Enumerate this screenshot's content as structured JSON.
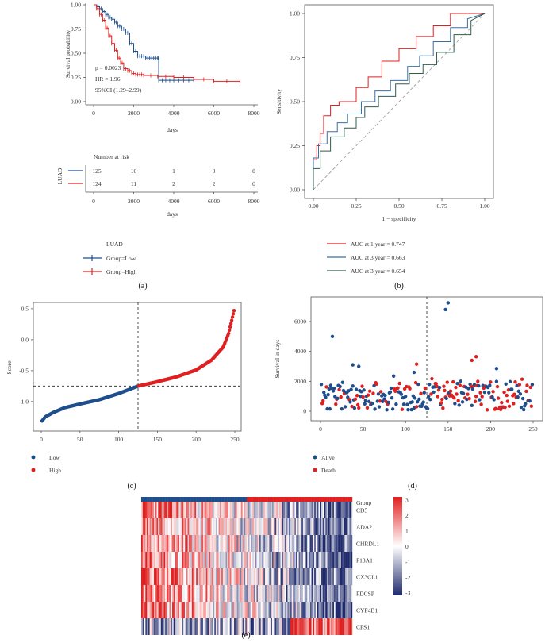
{
  "panels": {
    "a": "(a)",
    "b": "(b)",
    "c": "(c)",
    "d": "(d)",
    "e": "(e)"
  },
  "chart_data": [
    {
      "id": "a-km",
      "type": "line",
      "ylabel": "Survival probability",
      "xlabel": "days",
      "xlim": [
        0,
        8000
      ],
      "ylim": [
        0,
        1
      ],
      "xticks": [
        0,
        2000,
        4000,
        6000,
        8000
      ],
      "yticks": [
        "0.00",
        "0.25",
        "0.50",
        "0.75",
        "1.00"
      ],
      "annotations": [
        "p = 0.0023",
        "HR = 1.96",
        "95%CI (1.29–2.99)"
      ],
      "colors": {
        "Low": "#1f4e8c",
        "High": "#e02020"
      },
      "series": [
        {
          "name": "Group=Low",
          "x": [
            0,
            150,
            300,
            450,
            600,
            750,
            900,
            1050,
            1200,
            1400,
            1600,
            1800,
            2000,
            2200,
            2400,
            2600,
            2800,
            3000,
            3200,
            3250,
            3600,
            4000,
            4500,
            5000
          ],
          "y": [
            1,
            0.98,
            0.96,
            0.93,
            0.9,
            0.87,
            0.85,
            0.82,
            0.78,
            0.75,
            0.71,
            0.6,
            0.52,
            0.47,
            0.47,
            0.45,
            0.45,
            0.45,
            0.45,
            0.22,
            0.22,
            0.22,
            0.22,
            0.22
          ]
        },
        {
          "name": "Group=High",
          "x": [
            0,
            150,
            300,
            450,
            600,
            750,
            900,
            1050,
            1200,
            1350,
            1500,
            1700,
            1900,
            2100,
            2300,
            2500,
            3200,
            4000,
            5000,
            6000,
            7300
          ],
          "y": [
            1,
            0.96,
            0.9,
            0.84,
            0.76,
            0.68,
            0.6,
            0.53,
            0.45,
            0.4,
            0.34,
            0.32,
            0.29,
            0.28,
            0.28,
            0.27,
            0.26,
            0.25,
            0.23,
            0.21,
            0.21
          ]
        }
      ]
    },
    {
      "id": "a-risk",
      "type": "table",
      "title": "Number at risk",
      "group_label": "LUAD",
      "xlabel": "days",
      "xticks": [
        0,
        2000,
        4000,
        6000,
        8000
      ],
      "rows": [
        {
          "name": "Low",
          "color": "#1f4e8c",
          "values": [
            "125",
            "10",
            "1",
            "0",
            "0"
          ]
        },
        {
          "name": "High",
          "color": "#e02020",
          "values": [
            "124",
            "11",
            "2",
            "2",
            "0"
          ]
        }
      ],
      "legend_title": "LUAD",
      "legend": [
        "Group=Low",
        "Group=High"
      ]
    },
    {
      "id": "b-roc",
      "type": "line",
      "xlabel": "1 − specificity",
      "ylabel": "Sensitivity",
      "xlim": [
        0,
        1
      ],
      "ylim": [
        0,
        1
      ],
      "xticks": [
        "0.00",
        "0.25",
        "0.50",
        "0.75",
        "1.00"
      ],
      "yticks": [
        "0.00",
        "0.25",
        "0.50",
        "0.75",
        "1.00"
      ],
      "series": [
        {
          "name": "AUC at 1 year = 0.747",
          "color": "#e02020",
          "x": [
            0,
            0,
            0.02,
            0.02,
            0.04,
            0.04,
            0.06,
            0.06,
            0.1,
            0.1,
            0.15,
            0.15,
            0.25,
            0.25,
            0.32,
            0.32,
            0.4,
            0.4,
            0.5,
            0.5,
            0.6,
            0.6,
            0.7,
            0.7,
            0.8,
            0.8,
            0.9,
            1
          ],
          "y": [
            0,
            0.17,
            0.17,
            0.25,
            0.25,
            0.32,
            0.32,
            0.42,
            0.42,
            0.48,
            0.48,
            0.5,
            0.5,
            0.58,
            0.58,
            0.64,
            0.64,
            0.73,
            0.73,
            0.8,
            0.8,
            0.87,
            0.87,
            0.93,
            0.93,
            1,
            1,
            1
          ]
        },
        {
          "name": "AUC at 3 year = 0.663",
          "color": "#3a6ea5",
          "x": [
            0,
            0,
            0.03,
            0.03,
            0.08,
            0.08,
            0.14,
            0.14,
            0.2,
            0.2,
            0.28,
            0.28,
            0.36,
            0.36,
            0.45,
            0.45,
            0.55,
            0.55,
            0.62,
            0.62,
            0.7,
            0.7,
            0.8,
            0.8,
            0.9,
            0.9,
            1
          ],
          "y": [
            0,
            0.18,
            0.18,
            0.26,
            0.26,
            0.33,
            0.33,
            0.38,
            0.38,
            0.43,
            0.43,
            0.5,
            0.5,
            0.56,
            0.56,
            0.62,
            0.62,
            0.7,
            0.7,
            0.76,
            0.76,
            0.84,
            0.84,
            0.92,
            0.92,
            0.97,
            1
          ]
        },
        {
          "name": "AUC at 3 year = 0.654",
          "color": "#2f5e4e",
          "x": [
            0,
            0,
            0.04,
            0.04,
            0.1,
            0.1,
            0.18,
            0.18,
            0.25,
            0.25,
            0.3,
            0.3,
            0.38,
            0.38,
            0.48,
            0.48,
            0.56,
            0.56,
            0.64,
            0.64,
            0.72,
            0.72,
            0.82,
            0.82,
            0.92,
            0.92,
            1
          ],
          "y": [
            0,
            0.12,
            0.12,
            0.22,
            0.22,
            0.3,
            0.3,
            0.35,
            0.35,
            0.41,
            0.41,
            0.47,
            0.47,
            0.53,
            0.53,
            0.6,
            0.6,
            0.66,
            0.66,
            0.71,
            0.71,
            0.78,
            0.78,
            0.88,
            0.88,
            0.96,
            1
          ]
        }
      ]
    },
    {
      "id": "c-score",
      "type": "scatter",
      "ylabel": "Score",
      "xlim": [
        0,
        255
      ],
      "ylim": [
        -1.4,
        0.55
      ],
      "xticks": [
        0,
        50,
        100,
        150,
        200,
        250
      ],
      "yticks": [
        "-1.0",
        "-0.5",
        "0.0",
        "0.5"
      ],
      "cutoff_x": 125,
      "cutoff_y": -0.75,
      "legend": [
        "Low",
        "High"
      ],
      "colors": {
        "Low": "#1f4e8c",
        "High": "#e02020"
      },
      "n": 249,
      "curve_x": [
        0,
        5,
        15,
        30,
        50,
        75,
        100,
        125,
        150,
        175,
        200,
        220,
        235,
        242,
        249
      ],
      "curve_y": [
        -1.33,
        -1.25,
        -1.18,
        -1.1,
        -1.04,
        -0.97,
        -0.87,
        -0.75,
        -0.68,
        -0.6,
        -0.49,
        -0.33,
        -0.12,
        0.1,
        0.47
      ]
    },
    {
      "id": "d-survival",
      "type": "scatter",
      "ylabel": "Survival in days",
      "xlim": [
        0,
        255
      ],
      "ylim": [
        -300,
        7500
      ],
      "xticks": [
        0,
        50,
        100,
        150,
        200,
        250
      ],
      "yticks": [
        "0",
        "2000",
        "4000",
        "6000"
      ],
      "cutoff_x": 125,
      "legend": [
        "Alive",
        "Death"
      ],
      "colors": {
        "Alive": "#1f4e8c",
        "Death": "#e02020"
      }
    },
    {
      "id": "e-heatmap",
      "type": "heatmap",
      "rows": [
        "Group",
        "CD5",
        "ADA2",
        "CHRDL1",
        "F13A1",
        "CX3CL1",
        "FDCSP",
        "CYP4B1",
        "CPS1"
      ],
      "scale_ticks": [
        "3",
        "2",
        "1",
        "0",
        "-1",
        "-2",
        "-3"
      ],
      "colors": {
        "high": "#e02020",
        "mid": "#ffffff",
        "low": "#1f2a6b"
      }
    }
  ]
}
